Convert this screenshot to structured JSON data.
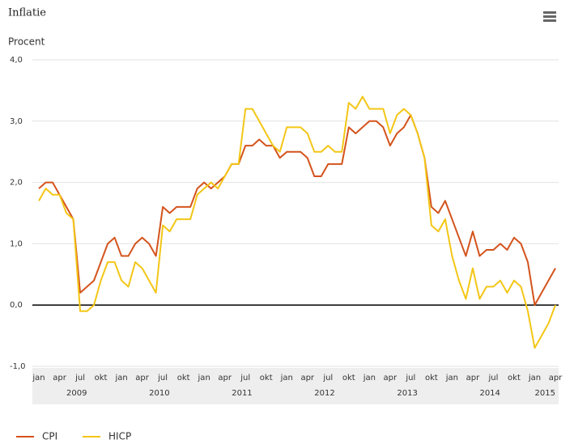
{
  "chart_data": {
    "type": "line",
    "title": "Inflatie",
    "y_label": "Procent",
    "categories": [
      "jan",
      null,
      null,
      "apr",
      null,
      null,
      "jul",
      null,
      null,
      "okt",
      null,
      null,
      "jan",
      null,
      null,
      "apr",
      null,
      null,
      "jul",
      null,
      null,
      "okt",
      null,
      null,
      "jan",
      null,
      null,
      "apr",
      null,
      null,
      "jul",
      null,
      null,
      "okt",
      null,
      null,
      "jan",
      null,
      null,
      "apr",
      null,
      null,
      "jul",
      null,
      null,
      "okt",
      null,
      null,
      "jan",
      null,
      null,
      "apr",
      null,
      null,
      "jul",
      null,
      null,
      "okt",
      null,
      null,
      "jan",
      null,
      null,
      "apr",
      null,
      null,
      "jul",
      null,
      null,
      "okt",
      null,
      null,
      "jan",
      null,
      null,
      "apr"
    ],
    "years": [
      "2009",
      "2010",
      "2011",
      "2012",
      "2013",
      "2014",
      "2015"
    ],
    "series": [
      {
        "name": "CPI",
        "color": "#d4531c",
        "values": [
          1.9,
          2.0,
          2.0,
          1.8,
          1.6,
          1.4,
          0.2,
          0.3,
          0.4,
          0.7,
          1.0,
          1.1,
          0.8,
          0.8,
          1.0,
          1.1,
          1.0,
          0.8,
          1.6,
          1.5,
          1.6,
          1.6,
          1.6,
          1.9,
          2.0,
          1.9,
          2.0,
          2.1,
          2.3,
          2.3,
          2.6,
          2.6,
          2.7,
          2.6,
          2.6,
          2.4,
          2.5,
          2.5,
          2.5,
          2.4,
          2.1,
          2.1,
          2.3,
          2.3,
          2.3,
          2.9,
          2.8,
          2.9,
          3.0,
          3.0,
          2.9,
          2.6,
          2.8,
          2.9,
          3.1,
          2.8,
          2.4,
          1.6,
          1.5,
          1.7,
          1.4,
          1.1,
          0.8,
          1.2,
          0.8,
          0.9,
          0.9,
          1.0,
          0.9,
          1.1,
          1.0,
          0.7,
          0.0,
          0.2,
          0.4,
          0.6
        ]
      },
      {
        "name": "HICP",
        "color": "#f3c616",
        "values": [
          1.7,
          1.9,
          1.8,
          1.8,
          1.5,
          1.4,
          -0.1,
          -0.1,
          0.0,
          0.4,
          0.7,
          0.7,
          0.4,
          0.3,
          0.7,
          0.6,
          0.4,
          0.2,
          1.3,
          1.2,
          1.4,
          1.4,
          1.4,
          1.8,
          1.9,
          2.0,
          1.9,
          2.1,
          2.3,
          2.3,
          3.2,
          3.2,
          3.0,
          2.8,
          2.6,
          2.5,
          2.9,
          2.9,
          2.9,
          2.8,
          2.5,
          2.5,
          2.6,
          2.5,
          2.5,
          3.3,
          3.2,
          3.4,
          3.2,
          3.2,
          3.2,
          2.8,
          3.1,
          3.2,
          3.1,
          2.8,
          2.4,
          1.3,
          1.2,
          1.4,
          0.8,
          0.4,
          0.1,
          0.6,
          0.1,
          0.3,
          0.3,
          0.4,
          0.2,
          0.4,
          0.3,
          -0.1,
          -0.7,
          -0.5,
          -0.3,
          0.0
        ]
      }
    ],
    "ylim": [
      -1,
      4
    ],
    "yticks": [
      {
        "value": -1,
        "label": "-1,0"
      },
      {
        "value": 0,
        "label": "0,0"
      },
      {
        "value": 1,
        "label": "1,0"
      },
      {
        "value": 2,
        "label": "2,0"
      },
      {
        "value": 3,
        "label": "3,0"
      },
      {
        "value": 4,
        "label": "4,0"
      }
    ],
    "grid": true,
    "legend": "bottom-left"
  }
}
